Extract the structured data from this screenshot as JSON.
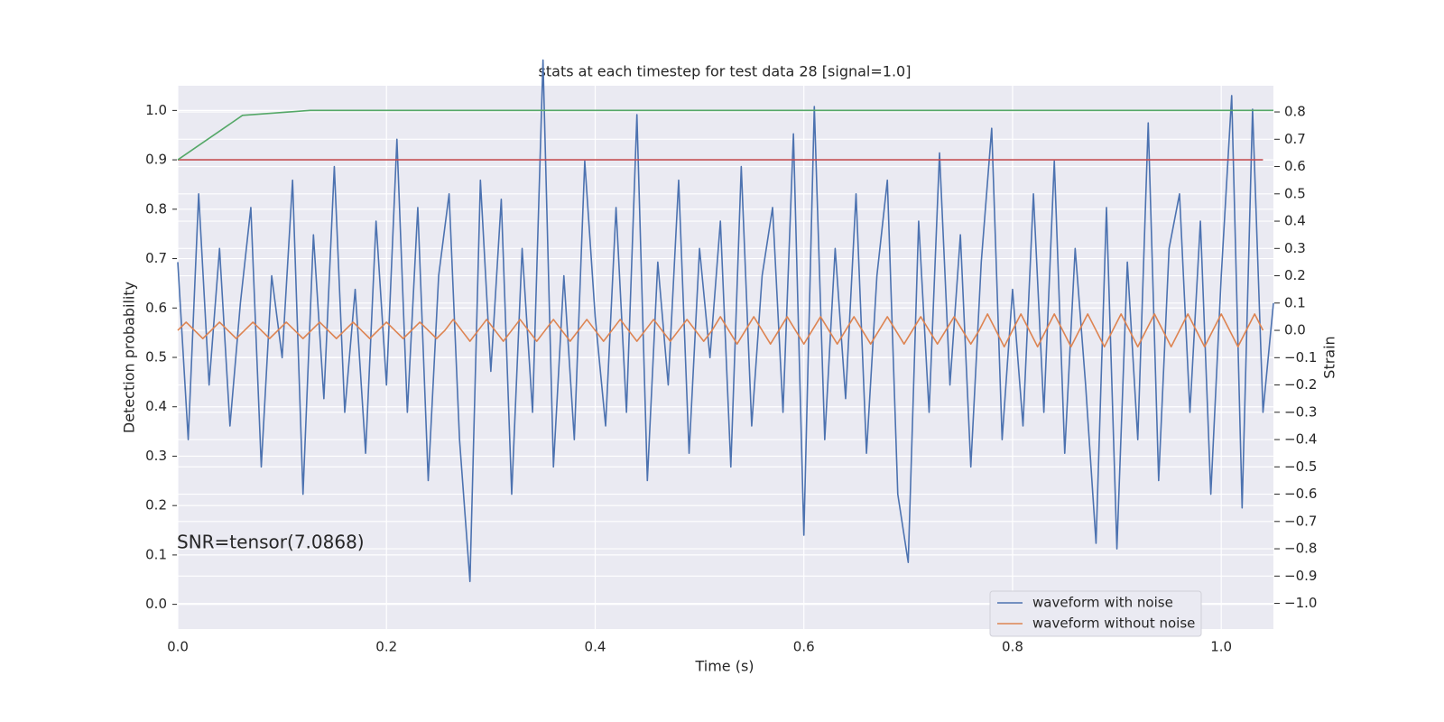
{
  "chart_data": {
    "type": "line",
    "title": "stats at each timestep for test data 28 [signal=1.0]",
    "xlabel": "Time (s)",
    "ylabel": "Detection probability",
    "y2label": "Strain",
    "annotation": "SNR=tensor(7.0868)",
    "xlim": [
      0,
      1.05
    ],
    "xticks": [
      {
        "value": 0,
        "label": "0.0"
      },
      0.2,
      0.4,
      0.6,
      0.8,
      {
        "value": 1,
        "label": "1.0"
      }
    ],
    "ylim": [
      -0.05,
      1.05
    ],
    "yticks": [
      {
        "value": 0,
        "label": "0.0"
      },
      0.1,
      0.2,
      0.3,
      0.4,
      0.5,
      0.6,
      0.7,
      0.8,
      0.9,
      {
        "value": 1,
        "label": "1.0"
      }
    ],
    "y2lim": [
      -1.094,
      0.896
    ],
    "y2ticks": [
      {
        "value": -1,
        "label": "−1.0"
      },
      {
        "value": -0.9,
        "label": "−0.9"
      },
      {
        "value": -0.8,
        "label": "−0.8"
      },
      {
        "value": -0.7,
        "label": "−0.7"
      },
      {
        "value": -0.6,
        "label": "−0.6"
      },
      {
        "value": -0.5,
        "label": "−0.5"
      },
      {
        "value": -0.4,
        "label": "−0.4"
      },
      {
        "value": -0.3,
        "label": "−0.3"
      },
      {
        "value": -0.2,
        "label": "−0.2"
      },
      {
        "value": -0.1,
        "label": "−0.1"
      },
      {
        "value": 0,
        "label": "0.0"
      },
      0.1,
      0.2,
      0.3,
      0.4,
      0.5,
      0.6,
      0.7,
      0.8
    ],
    "grid": true,
    "legend": "lower right",
    "series": [
      {
        "name": "waveform with noise",
        "color": "#4c72b0",
        "axis": "y2",
        "x": [
          0,
          0.01,
          0.02,
          0.03,
          0.04,
          0.05,
          0.06,
          0.07,
          0.08,
          0.09,
          0.1,
          0.11,
          0.12,
          0.13,
          0.14,
          0.15,
          0.16,
          0.17,
          0.18,
          0.19,
          0.2,
          0.21,
          0.22,
          0.23,
          0.24,
          0.25,
          0.26,
          0.27,
          0.28,
          0.29,
          0.3,
          0.31,
          0.32,
          0.33,
          0.34,
          0.35,
          0.36,
          0.37,
          0.38,
          0.39,
          0.4,
          0.41,
          0.42,
          0.43,
          0.44,
          0.45,
          0.46,
          0.47,
          0.48,
          0.49,
          0.5,
          0.51,
          0.52,
          0.53,
          0.54,
          0.55,
          0.56,
          0.57,
          0.58,
          0.59,
          0.6,
          0.61,
          0.62,
          0.63,
          0.64,
          0.65,
          0.66,
          0.67,
          0.68,
          0.69,
          0.7,
          0.71,
          0.72,
          0.73,
          0.74,
          0.75,
          0.76,
          0.77,
          0.78,
          0.79,
          0.8,
          0.81,
          0.82,
          0.83,
          0.84,
          0.85,
          0.86,
          0.87,
          0.88,
          0.89,
          0.9,
          0.91,
          0.92,
          0.93,
          0.94,
          0.95,
          0.96,
          0.97,
          0.98,
          0.99,
          1.0,
          1.01,
          1.02,
          1.03,
          1.04,
          1.05
        ],
        "values": [
          0.25,
          -0.4,
          0.5,
          -0.2,
          0.3,
          -0.35,
          0.1,
          0.45,
          -0.5,
          0.2,
          -0.1,
          0.55,
          -0.6,
          0.35,
          -0.25,
          0.6,
          -0.3,
          0.15,
          -0.45,
          0.4,
          -0.2,
          0.7,
          -0.3,
          0.45,
          -0.55,
          0.2,
          0.5,
          -0.4,
          -0.92,
          0.55,
          -0.15,
          0.48,
          -0.6,
          0.3,
          -0.3,
          0.99,
          -0.5,
          0.2,
          -0.4,
          0.62,
          0.05,
          -0.35,
          0.45,
          -0.3,
          0.79,
          -0.55,
          0.25,
          -0.2,
          0.55,
          -0.45,
          0.3,
          -0.1,
          0.4,
          -0.5,
          0.6,
          -0.35,
          0.2,
          0.45,
          -0.3,
          0.72,
          -0.75,
          0.82,
          -0.4,
          0.3,
          -0.25,
          0.5,
          -0.45,
          0.2,
          0.55,
          -0.6,
          -0.85,
          0.4,
          -0.3,
          0.65,
          -0.2,
          0.35,
          -0.5,
          0.25,
          0.74,
          -0.4,
          0.15,
          -0.35,
          0.5,
          -0.3,
          0.62,
          -0.45,
          0.3,
          -0.2,
          -0.78,
          0.45,
          -0.8,
          0.25,
          -0.4,
          0.76,
          -0.55,
          0.3,
          0.5,
          -0.3,
          0.4,
          -0.6,
          0.2,
          0.86,
          -0.65,
          0.81,
          -0.3,
          0.1
        ]
      },
      {
        "name": "waveform without noise",
        "color": "#dd8452",
        "axis": "y2",
        "x": [
          0,
          0.008,
          0.016,
          0.024,
          0.032,
          0.04,
          0.048,
          0.056,
          0.064,
          0.072,
          0.08,
          0.088,
          0.096,
          0.104,
          0.112,
          0.12,
          0.128,
          0.136,
          0.144,
          0.152,
          0.16,
          0.168,
          0.176,
          0.184,
          0.192,
          0.2,
          0.208,
          0.216,
          0.224,
          0.232,
          0.24,
          0.248,
          0.256,
          0.264,
          0.272,
          0.28,
          0.288,
          0.296,
          0.304,
          0.312,
          0.32,
          0.328,
          0.336,
          0.344,
          0.352,
          0.36,
          0.368,
          0.376,
          0.384,
          0.392,
          0.4,
          0.408,
          0.416,
          0.424,
          0.432,
          0.44,
          0.448,
          0.456,
          0.464,
          0.472,
          0.48,
          0.488,
          0.496,
          0.504,
          0.512,
          0.52,
          0.528,
          0.536,
          0.544,
          0.552,
          0.56,
          0.568,
          0.576,
          0.584,
          0.592,
          0.6,
          0.608,
          0.616,
          0.624,
          0.632,
          0.64,
          0.648,
          0.656,
          0.664,
          0.672,
          0.68,
          0.688,
          0.696,
          0.704,
          0.712,
          0.72,
          0.728,
          0.736,
          0.744,
          0.752,
          0.76,
          0.768,
          0.776,
          0.784,
          0.792,
          0.8,
          0.808,
          0.816,
          0.824,
          0.832,
          0.84,
          0.848,
          0.856,
          0.864,
          0.872,
          0.88,
          0.888,
          0.896,
          0.904,
          0.912,
          0.92,
          0.928,
          0.936,
          0.944,
          0.952,
          0.96,
          0.968,
          0.976,
          0.984,
          0.992,
          1.0,
          1.008,
          1.016,
          1.024,
          1.032,
          1.04
        ],
        "values": [
          0,
          0.03,
          0,
          -0.03,
          0,
          0.03,
          0,
          -0.03,
          0,
          0.03,
          0,
          -0.03,
          0,
          0.03,
          0,
          -0.03,
          0,
          0.03,
          0,
          -0.03,
          0,
          0.03,
          0,
          -0.03,
          0,
          0.03,
          0,
          -0.03,
          0,
          0.03,
          0,
          -0.03,
          0,
          0.04,
          0,
          -0.04,
          0,
          0.04,
          0,
          -0.04,
          0,
          0.04,
          0,
          -0.04,
          0,
          0.04,
          0,
          -0.04,
          0,
          0.04,
          0,
          -0.04,
          0,
          0.04,
          0,
          -0.04,
          0,
          0.04,
          0,
          -0.04,
          0,
          0.04,
          0,
          -0.04,
          0,
          0.05,
          0,
          -0.05,
          0,
          0.05,
          0,
          -0.05,
          0,
          0.05,
          0,
          -0.05,
          0,
          0.05,
          0,
          -0.05,
          0,
          0.05,
          0,
          -0.05,
          0,
          0.05,
          0,
          -0.05,
          0,
          0.05,
          0,
          -0.05,
          0,
          0.05,
          0,
          -0.05,
          0,
          0.06,
          0,
          -0.06,
          0,
          0.06,
          0,
          -0.06,
          0,
          0.06,
          0,
          -0.06,
          0,
          0.06,
          0,
          -0.06,
          0,
          0.06,
          0,
          -0.06,
          0,
          0.06,
          0,
          -0.06,
          0,
          0.06,
          0,
          -0.06,
          0,
          0.06,
          0,
          -0.06,
          0,
          0.06,
          0
        ]
      },
      {
        "color": "#c44e52",
        "x": [
          0,
          1.04
        ],
        "values": [
          0.9,
          0.9
        ]
      },
      {
        "color": "#55a868",
        "x": [
          0,
          0.062,
          0.127,
          0.2,
          1.05
        ],
        "values": [
          0.9,
          0.99,
          1.0,
          1.0,
          1.0
        ]
      }
    ]
  }
}
